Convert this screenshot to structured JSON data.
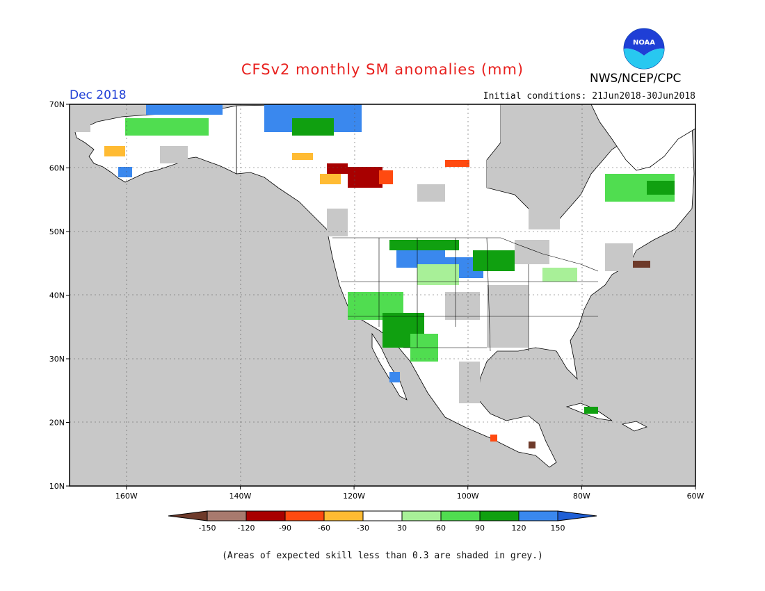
{
  "header": {
    "title": "CFSv2 monthly SM anomalies (mm)",
    "month": "Dec 2018",
    "initial_conditions": "Initial conditions: 21Jun2018-30Jun2018",
    "agency": "NWS/NCEP/CPC",
    "logo_text": "NOAA"
  },
  "map": {
    "lon_range": [
      -170,
      -60
    ],
    "lat_range": [
      10,
      70
    ],
    "lon_ticks": [
      {
        "value": -160,
        "label": "160W"
      },
      {
        "value": -140,
        "label": "140W"
      },
      {
        "value": -120,
        "label": "120W"
      },
      {
        "value": -100,
        "label": "100W"
      },
      {
        "value": -80,
        "label": "80W"
      },
      {
        "value": -60,
        "label": "60W"
      }
    ],
    "lat_ticks": [
      {
        "value": 70,
        "label": "70N"
      },
      {
        "value": 60,
        "label": "60N"
      },
      {
        "value": 50,
        "label": "50N"
      },
      {
        "value": 40,
        "label": "40N"
      },
      {
        "value": 30,
        "label": "30N"
      },
      {
        "value": 20,
        "label": "20N"
      },
      {
        "value": 10,
        "label": "10N"
      }
    ],
    "grey_color": "#c8c8c8"
  },
  "colorbar": {
    "labels": [
      "-150",
      "-120",
      "-90",
      "-60",
      "-30",
      "30",
      "60",
      "90",
      "120",
      "150"
    ],
    "colors": [
      "#6e3a2a",
      "#a87a6e",
      "#a80000",
      "#ff4a10",
      "#ffbb33",
      "#ffffff",
      "#a8f098",
      "#50dd50",
      "#10a010",
      "#3a88ee",
      "#1f5fd6"
    ]
  },
  "footnote": "(Areas of expected skill less than 0.3 are shaded in grey.)"
}
